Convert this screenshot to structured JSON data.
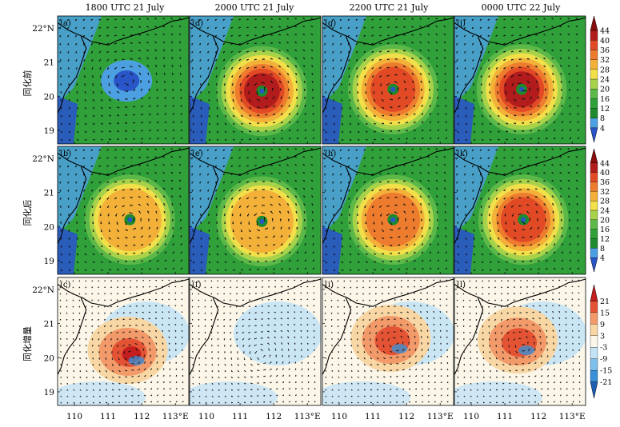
{
  "chart_data": {
    "type": "heatmap",
    "columns": [
      "1800  UTC  21  July",
      "2000  UTC  21  July",
      "2200  UTC  21  July",
      "0000  UTC  22  July"
    ],
    "row_labels": [
      "同化前",
      "同化后",
      "同化增量"
    ],
    "panel_letters": [
      [
        "(a)",
        "(d)",
        "(g)",
        "(j)"
      ],
      [
        "(b)",
        "(e)",
        "(h)",
        "(k)"
      ],
      [
        "(c)",
        "(f)",
        "(i)",
        "(l)"
      ]
    ],
    "x_ticks": [
      "110",
      "111",
      "112",
      "113°E"
    ],
    "y_ticks": [
      "22°N",
      "21",
      "20",
      "19"
    ],
    "x_tick_values": [
      110,
      111,
      112,
      113
    ],
    "y_tick_values": [
      22,
      21,
      20,
      19
    ],
    "xlim": [
      109.5,
      113.4
    ],
    "ylim": [
      18.6,
      22.35
    ],
    "wind_speed_colorbar": {
      "ticks": [
        "44",
        "40",
        "36",
        "32",
        "28",
        "24",
        "20",
        "16",
        "12",
        "8",
        "4"
      ],
      "levels": [
        4,
        8,
        12,
        16,
        20,
        24,
        28,
        32,
        36,
        40,
        44
      ],
      "colors": [
        "#2a55c9",
        "#4c9fe0",
        "#1e8a2e",
        "#2fa03a",
        "#5cb848",
        "#a8d24a",
        "#f1e04a",
        "#f3b13a",
        "#ee7c2f",
        "#e24a26",
        "#b21c1c",
        "#8c0d0d"
      ]
    },
    "increment_colorbar": {
      "ticks": [
        "21",
        "15",
        "9",
        "3",
        "-3",
        "-9",
        "-15",
        "-21"
      ],
      "levels": [
        -21,
        -15,
        -9,
        -3,
        3,
        9,
        15,
        21
      ],
      "colors": [
        "#1c5fb5",
        "#3b8fd6",
        "#7ec0ec",
        "#c4e4f6",
        "#fbf6e8",
        "#f8d7a4",
        "#f29a6a",
        "#e45434",
        "#c41e1e"
      ]
    },
    "typhoon_center": [
      [
        [
          111.55,
          20.45
        ],
        [
          111.65,
          20.15
        ],
        [
          111.6,
          20.2
        ],
        [
          111.5,
          20.2
        ]
      ],
      [
        [
          111.65,
          20.2
        ],
        [
          111.65,
          20.15
        ],
        [
          111.6,
          20.2
        ],
        [
          111.55,
          20.2
        ]
      ],
      [
        [
          111.7,
          20.1
        ],
        [
          111.6,
          20.1
        ],
        [
          111.65,
          20.45
        ],
        [
          111.5,
          20.4
        ]
      ]
    ],
    "max_wind": [
      [
        12,
        40,
        36,
        42
      ],
      [
        30,
        30,
        32,
        36
      ],
      [
        18,
        3,
        12,
        12
      ]
    ]
  }
}
